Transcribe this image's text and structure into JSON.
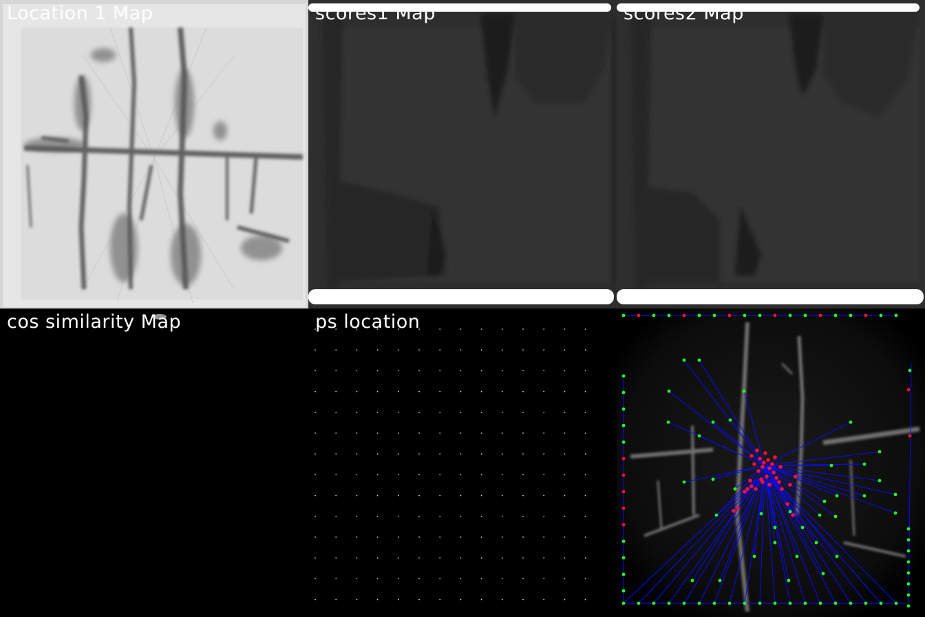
{
  "panels": [
    {
      "title": "Location 1 Map"
    },
    {
      "title": "scores1 Map"
    },
    {
      "title": "scores2 Map"
    },
    {
      "title": "cos similarity Map"
    },
    {
      "title": "ps location"
    },
    {
      "title": ""
    }
  ],
  "colors": {
    "background": "#000000",
    "title_text": "#ffffff",
    "match_line": "#0000ff",
    "keypoint_green": "#22ff22",
    "keypoint_red": "#ff1133",
    "score_fill": "#333333",
    "location_fill": "#e4e4e4"
  }
}
